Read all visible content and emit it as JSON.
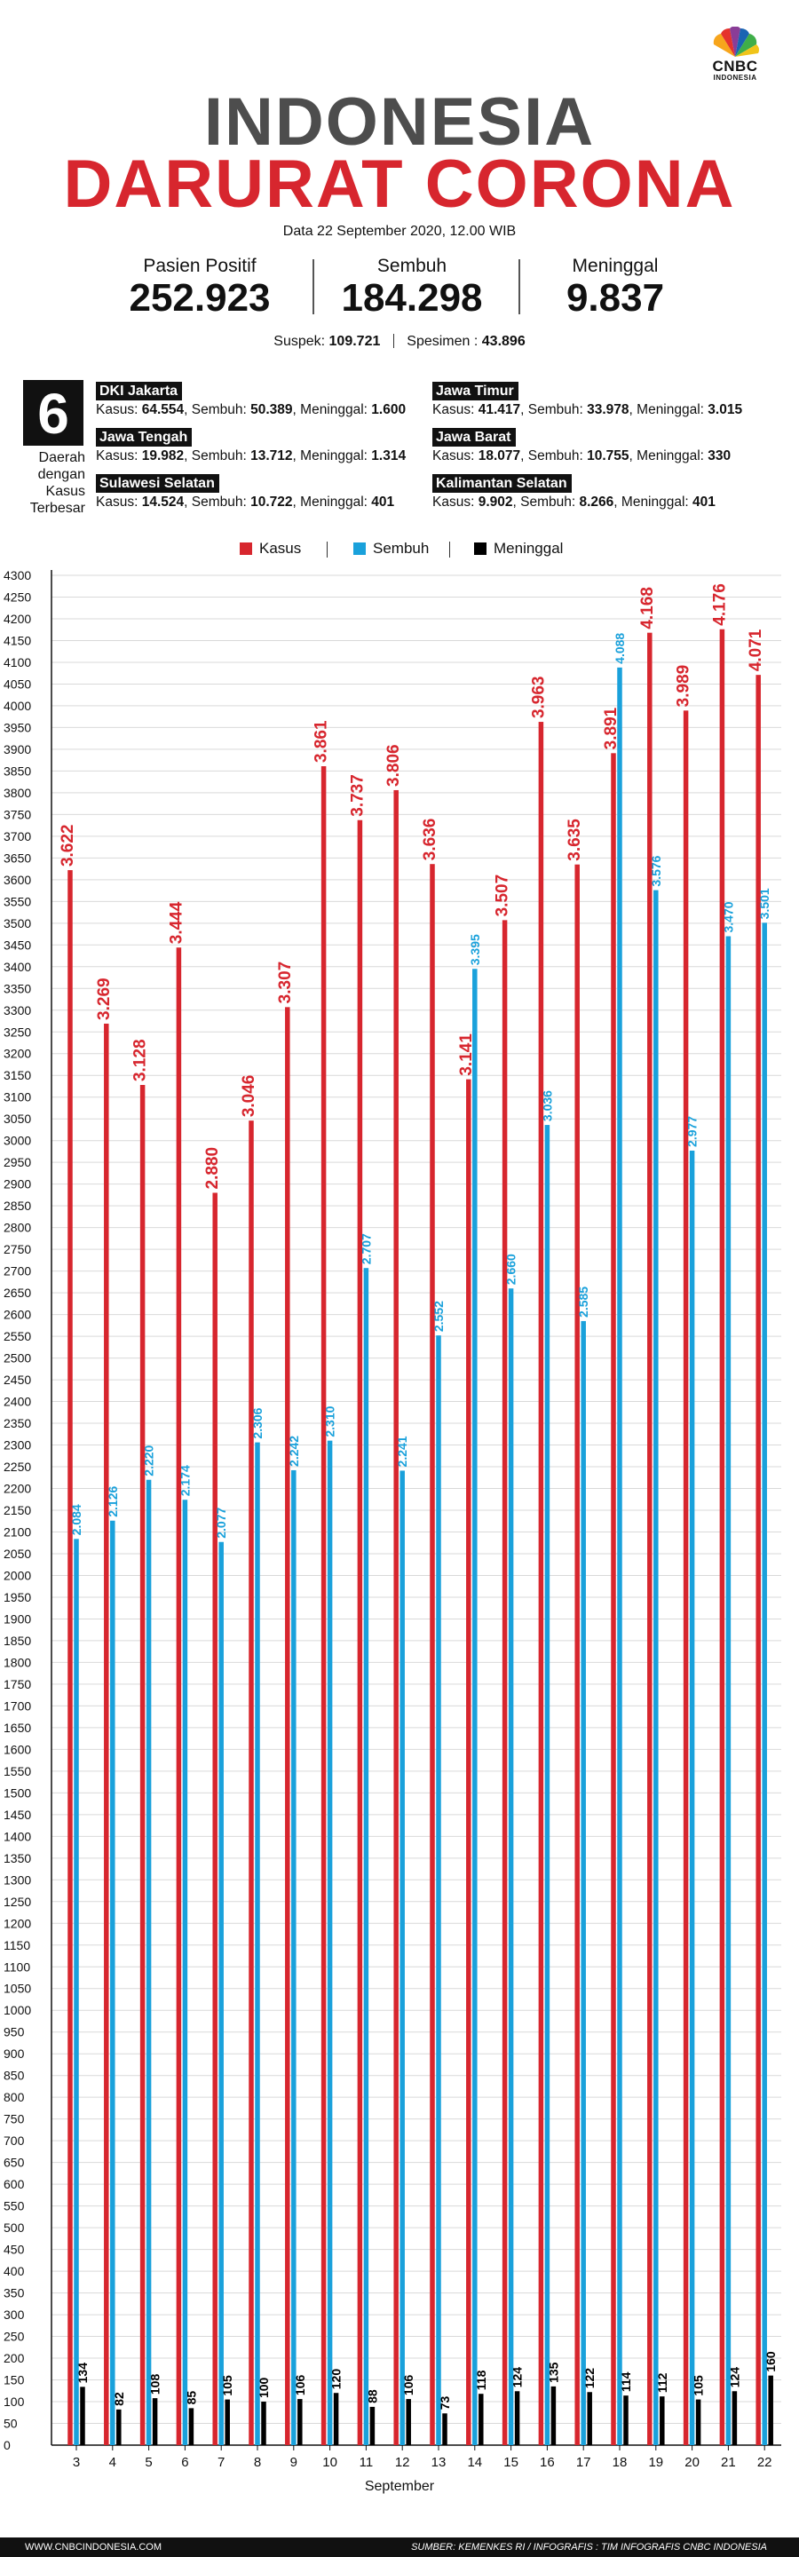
{
  "brand": {
    "name": "CNBC",
    "sub": "INDONESIA"
  },
  "title": {
    "line1": "INDONESIA",
    "line2": "DARURAT CORONA"
  },
  "date_line": "Data 22 September 2020, 12.00 WIB",
  "stats": [
    {
      "label": "Pasien Positif",
      "value": "252.923"
    },
    {
      "label": "Sembuh",
      "value": "184.298"
    },
    {
      "label": "Meninggal",
      "value": "9.837"
    }
  ],
  "sub_stats": {
    "suspek_label": "Suspek:",
    "suspek_value": "109.721",
    "spesimen_label": "Spesimen :",
    "spesimen_value": "43.896"
  },
  "top_regions": {
    "count": "6",
    "caption": [
      "Daerah",
      "dengan",
      "Kasus",
      "Terbesar"
    ],
    "regions": [
      {
        "name": "DKI Jakarta",
        "kasus": "64.554",
        "sembuh": "50.389",
        "meninggal": "1.600"
      },
      {
        "name": "Jawa Timur",
        "kasus": "41.417",
        "sembuh": "33.978",
        "meninggal": "3.015"
      },
      {
        "name": "Jawa Tengah",
        "kasus": "19.982",
        "sembuh": "13.712",
        "meninggal": "1.314"
      },
      {
        "name": "Jawa Barat",
        "kasus": "18.077",
        "sembuh": "10.755",
        "meninggal": "330"
      },
      {
        "name": "Sulawesi Selatan",
        "kasus": "14.524",
        "sembuh": "10.722",
        "meninggal": "401"
      },
      {
        "name": "Kalimantan Selatan",
        "kasus": "9.902",
        "sembuh": "8.266",
        "meninggal": "401"
      }
    ],
    "labels": {
      "kasus": "Kasus:",
      "sembuh": "Sembuh:",
      "meninggal": "Meninggal:"
    }
  },
  "colors": {
    "kasus": "#d7262e",
    "sembuh": "#1aa1db",
    "meninggal": "#000000",
    "title_gray": "#4d4d4d"
  },
  "chart_data": {
    "type": "bar",
    "categories": [
      "3",
      "4",
      "5",
      "6",
      "7",
      "8",
      "9",
      "10",
      "11",
      "12",
      "13",
      "14",
      "15",
      "16",
      "17",
      "18",
      "19",
      "20",
      "21",
      "22"
    ],
    "series": [
      {
        "name": "Kasus",
        "values": [
          3622,
          3269,
          3128,
          3444,
          2880,
          3046,
          3307,
          3861,
          3737,
          3806,
          3636,
          3141,
          3507,
          3963,
          3635,
          3891,
          4168,
          3989,
          4176,
          4071
        ],
        "labels": [
          "3.622",
          "3.269",
          "3.128",
          "3.444",
          "2.880",
          "3.046",
          "3.307",
          "3.861",
          "3.737",
          "3.806",
          "3.636",
          "3.141",
          "3.507",
          "3.963",
          "3.635",
          "3.891",
          "4.168",
          "3.989",
          "4.176",
          "4.071"
        ]
      },
      {
        "name": "Sembuh",
        "values": [
          2084,
          2126,
          2220,
          2174,
          2077,
          2306,
          2242,
          2310,
          2707,
          2241,
          2552,
          3395,
          2660,
          3036,
          2585,
          4088,
          3576,
          2977,
          3470,
          3501
        ],
        "labels": [
          "2.084",
          "2.126",
          "2.220",
          "2.174",
          "2.077",
          "2.306",
          "2.242",
          "2.310",
          "2.707",
          "2.241",
          "2.552",
          "3.395",
          "2.660",
          "3.036",
          "2.585",
          "4.088",
          "3.576",
          "2.977",
          "3.470",
          "3.501"
        ]
      },
      {
        "name": "Meninggal",
        "values": [
          134,
          82,
          108,
          85,
          105,
          100,
          106,
          120,
          88,
          106,
          73,
          118,
          124,
          135,
          122,
          114,
          112,
          105,
          124,
          160
        ],
        "labels": [
          "134",
          "82",
          "108",
          "85",
          "105",
          "100",
          "106",
          "120",
          "88",
          "106",
          "73",
          "118",
          "124",
          "135",
          "122",
          "114",
          "112",
          "105",
          "124",
          "160"
        ]
      }
    ],
    "xlabel": "September",
    "ylim": [
      0,
      4300
    ],
    "ytick_step": 50,
    "grid": true,
    "legend": "top-center"
  },
  "footer": {
    "left": "WWW.CNBCINDONESIA.COM",
    "right": "SUMBER: KEMENKES RI / INFOGRAFIS : TIM INFOGRAFIS CNBC INDONESIA"
  }
}
